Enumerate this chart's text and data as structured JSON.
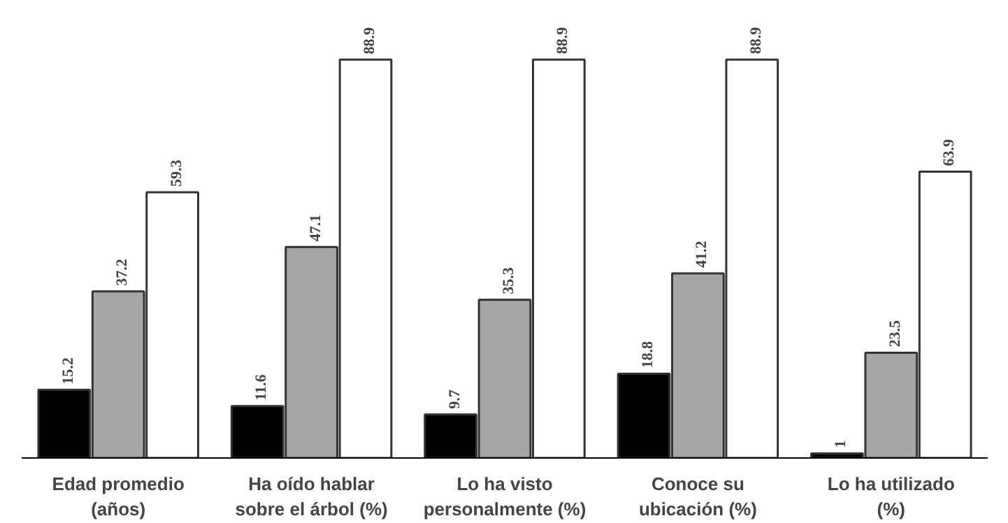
{
  "chart_data": {
    "type": "bar",
    "categories": [
      "Edad promedio (años)",
      "Ha oído hablar sobre el árbol (%)",
      "Lo ha visto personalmente (%)",
      "Conoce su ubicación (%)",
      "Lo ha utilizado (%)"
    ],
    "series": [
      {
        "color": "#000000",
        "values": [
          15.2,
          11.6,
          9.7,
          18.8,
          1
        ]
      },
      {
        "color": "#a6a6a6",
        "values": [
          37.2,
          47.1,
          35.3,
          41.2,
          23.5
        ]
      },
      {
        "color": "#ffffff",
        "values": [
          59.3,
          88.9,
          88.9,
          88.9,
          63.9
        ]
      }
    ],
    "data_labels": true
  }
}
